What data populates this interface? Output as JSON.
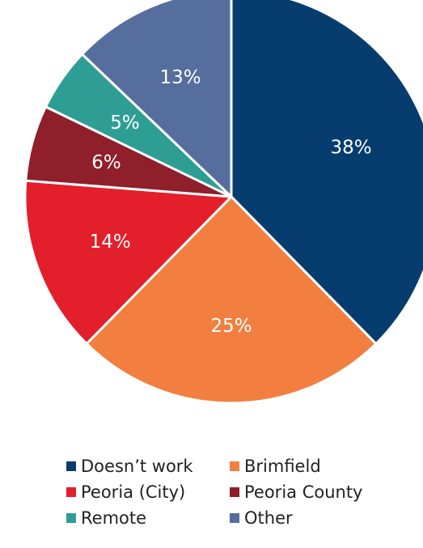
{
  "chart_data": {
    "type": "pie",
    "title": "",
    "start_angle_deg": 0,
    "direction": "clockwise",
    "slices": [
      {
        "name": "Doesn’t work",
        "value": 38,
        "label": "38%",
        "color": "#073D6E"
      },
      {
        "name": "Brimfield",
        "value": 25,
        "label": "25%",
        "color": "#F27F3F"
      },
      {
        "name": "Peoria (City)",
        "value": 14,
        "label": "14%",
        "color": "#E21F2B"
      },
      {
        "name": "Peoria County",
        "value": 6,
        "label": "6%",
        "color": "#8E1F2B"
      },
      {
        "name": "Remote",
        "value": 5,
        "label": "5%",
        "color": "#2E9E94"
      },
      {
        "name": "Other",
        "value": 13,
        "label": "13%",
        "color": "#556E9E"
      }
    ],
    "legend": {
      "placement": "bottom",
      "entries": [
        "Doesn’t work",
        "Brimfield",
        "Peoria (City)",
        "Peoria County",
        "Remote",
        "Other"
      ]
    }
  }
}
